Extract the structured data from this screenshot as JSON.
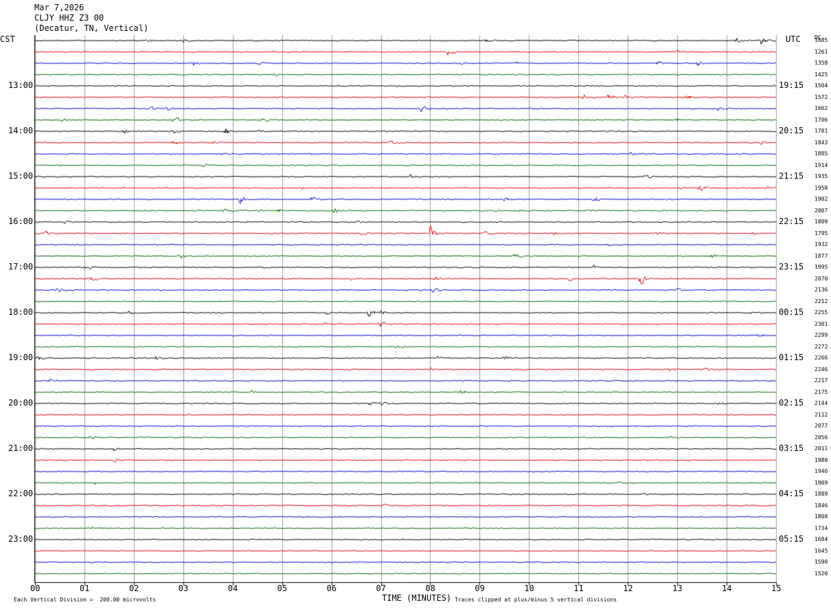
{
  "header": {
    "date": "Mar 7,2026",
    "station": "CLJY HHZ Z3 00",
    "location": "(Decatur, TN, Vertical)"
  },
  "labels": {
    "left_zone": "CST",
    "right_zone": "UTC",
    "dc_header": "DC",
    "xlabel": "TIME (MINUTES)",
    "scale_note": "Each Vertical Division =  200.00 microvolts",
    "clip_note": "Traces clipped at plus/minus 5 vertical divisions"
  },
  "chart_data": {
    "type": "line",
    "title": "CLJY HHZ Z3 00",
    "xlabel": "TIME (MINUTES)",
    "xlim": [
      0,
      15
    ],
    "x_ticks": [
      "00",
      "01",
      "02",
      "03",
      "04",
      "05",
      "06",
      "07",
      "08",
      "09",
      "10",
      "11",
      "12",
      "13",
      "14",
      "15"
    ],
    "trace_colors": [
      "#000000",
      "#e00000",
      "#0000d0",
      "#006400"
    ],
    "left_time_labels": [
      {
        "row": 4,
        "text": "13:00"
      },
      {
        "row": 8,
        "text": "14:00"
      },
      {
        "row": 12,
        "text": "15:00"
      },
      {
        "row": 16,
        "text": "16:00"
      },
      {
        "row": 20,
        "text": "17:00"
      },
      {
        "row": 24,
        "text": "18:00"
      },
      {
        "row": 28,
        "text": "19:00"
      },
      {
        "row": 32,
        "text": "20:00"
      },
      {
        "row": 36,
        "text": "21:00"
      },
      {
        "row": 40,
        "text": "22:00"
      },
      {
        "row": 44,
        "text": "23:00"
      }
    ],
    "right_time_labels": [
      {
        "row": 4,
        "text": "19:15"
      },
      {
        "row": 8,
        "text": "20:15"
      },
      {
        "row": 12,
        "text": "21:15"
      },
      {
        "row": 16,
        "text": "22:15"
      },
      {
        "row": 20,
        "text": "23:15"
      },
      {
        "row": 24,
        "text": "00:15"
      },
      {
        "row": 28,
        "text": "01:15"
      },
      {
        "row": 32,
        "text": "02:15"
      },
      {
        "row": 36,
        "text": "03:15"
      },
      {
        "row": 40,
        "text": "04:15"
      },
      {
        "row": 44,
        "text": "05:15"
      }
    ],
    "dc_values": [
      "1685",
      "1261",
      "1358",
      "1425",
      "1504",
      "1572",
      "1662",
      "1706",
      "1781",
      "1843",
      "1885",
      "1914",
      "1935",
      "1958",
      "1982",
      "2007",
      "1809",
      "1795",
      "1932",
      "1877",
      "1995",
      "2070",
      "2136",
      "2212",
      "2255",
      "2301",
      "2299",
      "2272",
      "2266",
      "2246",
      "2217",
      "2175",
      "2144",
      "2112",
      "2077",
      "2056",
      "2011",
      "1980",
      "1946",
      "1909",
      "1889",
      "1846",
      "1808",
      "1734",
      "1684",
      "1645",
      "1590",
      "1520"
    ],
    "events": [
      [
        [
          2.3,
          4
        ],
        [
          3.0,
          3
        ],
        [
          9.1,
          4
        ],
        [
          14.2,
          5
        ],
        [
          14.7,
          9
        ]
      ],
      [
        [
          8.35,
          7
        ],
        [
          13.0,
          3
        ]
      ],
      [
        [
          3.2,
          5
        ],
        [
          4.5,
          4
        ],
        [
          8.6,
          4
        ],
        [
          9.7,
          4
        ],
        [
          12.6,
          4
        ],
        [
          13.4,
          5
        ]
      ],
      [
        [
          4.85,
          3
        ]
      ],
      [
        [
          7.3,
          2
        ]
      ],
      [
        [
          11.1,
          6
        ],
        [
          11.6,
          8
        ],
        [
          11.95,
          5
        ],
        [
          13.2,
          5
        ]
      ],
      [
        [
          2.35,
          4
        ],
        [
          2.65,
          5
        ],
        [
          7.8,
          8
        ],
        [
          13.8,
          4
        ]
      ],
      [
        [
          0.55,
          6
        ],
        [
          2.8,
          7
        ],
        [
          4.55,
          6
        ],
        [
          13.0,
          3
        ]
      ],
      [
        [
          1.8,
          4
        ],
        [
          2.8,
          4
        ],
        [
          3.85,
          8
        ],
        [
          4.5,
          3
        ],
        [
          11.6,
          3
        ]
      ],
      [
        [
          2.8,
          6
        ],
        [
          3.6,
          4
        ],
        [
          7.2,
          5
        ],
        [
          14.7,
          3
        ]
      ],
      [
        [
          3.8,
          3
        ],
        [
          12.05,
          5
        ]
      ],
      [
        [
          2.0,
          3
        ],
        [
          3.4,
          3
        ],
        [
          7.6,
          2
        ],
        [
          10.9,
          3
        ]
      ],
      [
        [
          3.1,
          3
        ],
        [
          7.6,
          4
        ],
        [
          12.35,
          4
        ]
      ],
      [
        [
          1.7,
          3
        ],
        [
          5.4,
          3
        ],
        [
          13.0,
          4
        ],
        [
          13.45,
          8
        ],
        [
          14.8,
          4
        ]
      ],
      [
        [
          4.15,
          7
        ],
        [
          5.6,
          5
        ],
        [
          9.5,
          5
        ],
        [
          11.3,
          7
        ],
        [
          12.8,
          3
        ]
      ],
      [
        [
          3.8,
          4
        ],
        [
          4.15,
          3
        ],
        [
          4.5,
          4
        ],
        [
          4.9,
          5
        ],
        [
          6.05,
          8
        ],
        [
          9.15,
          5
        ],
        [
          9.8,
          3
        ],
        [
          11.2,
          3
        ]
      ],
      [
        [
          0.6,
          3
        ],
        [
          6.5,
          4
        ]
      ],
      [
        [
          0.2,
          5
        ],
        [
          6.6,
          4
        ],
        [
          8.0,
          17
        ],
        [
          9.1,
          4
        ],
        [
          10.5,
          5
        ],
        [
          12.55,
          4
        ],
        [
          14.5,
          4
        ]
      ],
      [
        [
          11.6,
          3
        ]
      ],
      [
        [
          2.95,
          6
        ],
        [
          9.7,
          5
        ],
        [
          13.7,
          5
        ]
      ],
      [
        [
          1.05,
          4
        ],
        [
          4.6,
          2
        ],
        [
          8.75,
          3
        ],
        [
          11.3,
          4
        ]
      ],
      [
        [
          1.15,
          4
        ],
        [
          6.4,
          5
        ],
        [
          8.1,
          4
        ],
        [
          10.8,
          3
        ],
        [
          12.25,
          12
        ]
      ],
      [
        [
          0.45,
          5
        ],
        [
          8.05,
          5
        ],
        [
          13.0,
          3
        ]
      ],
      [],
      [
        [
          1.9,
          4
        ],
        [
          5.9,
          3
        ],
        [
          6.75,
          9
        ],
        [
          7.0,
          5
        ],
        [
          14.5,
          3
        ]
      ],
      [
        [
          5.85,
          3
        ],
        [
          7.0,
          8
        ]
      ],
      [
        [
          14.65,
          5
        ]
      ],
      [
        [
          7.3,
          4
        ]
      ],
      [
        [
          0.05,
          5
        ],
        [
          2.45,
          4
        ],
        [
          8.15,
          4
        ],
        [
          9.5,
          4
        ]
      ],
      [
        [
          8.0,
          3
        ],
        [
          12.85,
          5
        ],
        [
          13.55,
          4
        ]
      ],
      [
        [
          0.3,
          5
        ]
      ],
      [
        [
          4.4,
          4
        ],
        [
          8.6,
          6
        ]
      ],
      [
        [
          6.75,
          5
        ],
        [
          7.0,
          3
        ],
        [
          13.8,
          4
        ]
      ],
      [],
      [],
      [
        [
          1.1,
          4
        ],
        [
          12.85,
          4
        ]
      ],
      [
        [
          1.6,
          5
        ]
      ],
      [
        [
          1.6,
          4
        ]
      ],
      [],
      [
        [
          1.2,
          3
        ],
        [
          11.8,
          2
        ]
      ],
      [
        [
          12.3,
          2
        ]
      ],
      [
        [
          7.05,
          3
        ]
      ],
      [],
      [
        [
          1.15,
          2
        ]
      ],
      [],
      [],
      [],
      []
    ]
  }
}
